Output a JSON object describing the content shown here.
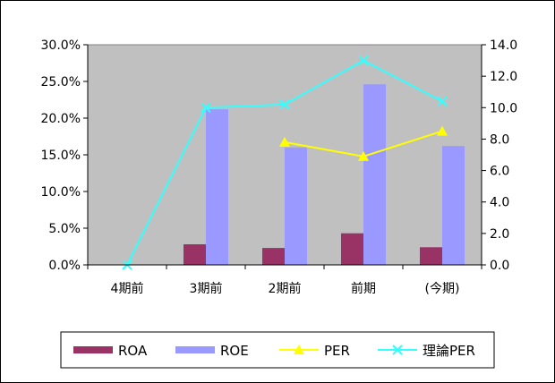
{
  "chart_data": {
    "type": "bar",
    "categories": [
      "4期前",
      "3期前",
      "2期前",
      "前期",
      "(今期)"
    ],
    "series": [
      {
        "name": "ROA",
        "type": "bar",
        "axis": "left",
        "color": "#993366",
        "values": [
          null,
          0.028,
          0.023,
          0.043,
          0.024
        ]
      },
      {
        "name": "ROE",
        "type": "bar",
        "axis": "left",
        "color": "#9999ff",
        "values": [
          null,
          0.212,
          0.16,
          0.246,
          0.162
        ]
      },
      {
        "name": "PER",
        "type": "line",
        "axis": "right",
        "color": "#ffff00",
        "marker": "triangle",
        "values": [
          null,
          null,
          7.8,
          6.9,
          8.5
        ]
      },
      {
        "name": "理論PER",
        "type": "line",
        "axis": "right",
        "color": "#33ffff",
        "marker": "x",
        "values": [
          0.0,
          10.0,
          10.2,
          13.0,
          10.4
        ]
      }
    ],
    "y_left": {
      "min": 0,
      "max": 0.3,
      "step": 0.05,
      "tick_labels": [
        "0.0%",
        "5.0%",
        "10.0%",
        "15.0%",
        "20.0%",
        "25.0%",
        "30.0%"
      ]
    },
    "y_right": {
      "min": 0,
      "max": 14,
      "step": 2,
      "tick_labels": [
        "0.0",
        "2.0",
        "4.0",
        "6.0",
        "8.0",
        "10.0",
        "12.0",
        "14.0"
      ]
    },
    "plot_background": "#c0c0c0",
    "grid": false,
    "legend_position": "bottom"
  }
}
